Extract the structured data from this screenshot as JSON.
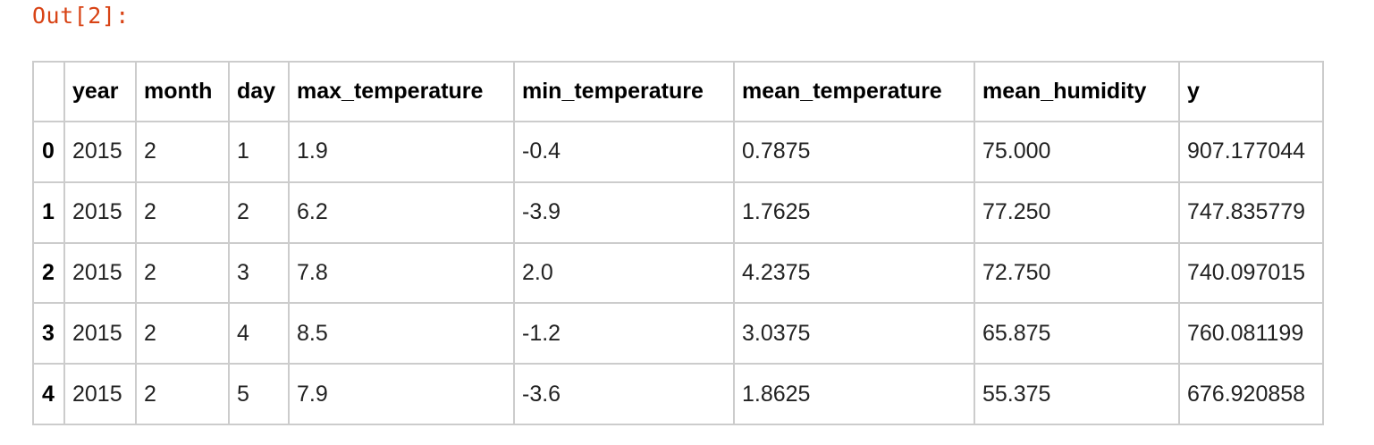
{
  "prompt": {
    "label": "Out[2]:"
  },
  "table": {
    "columns": [
      "",
      "year",
      "month",
      "day",
      "max_temperature",
      "min_temperature",
      "mean_temperature",
      "mean_humidity",
      "y"
    ],
    "rows": [
      {
        "index": "0",
        "cells": [
          "2015",
          "2",
          "1",
          "1.9",
          "-0.4",
          "0.7875",
          "75.000",
          "907.177044"
        ]
      },
      {
        "index": "1",
        "cells": [
          "2015",
          "2",
          "2",
          "6.2",
          "-3.9",
          "1.7625",
          "77.250",
          "747.835779"
        ]
      },
      {
        "index": "2",
        "cells": [
          "2015",
          "2",
          "3",
          "7.8",
          "2.0",
          "4.2375",
          "72.750",
          "740.097015"
        ]
      },
      {
        "index": "3",
        "cells": [
          "2015",
          "2",
          "4",
          "8.5",
          "-1.2",
          "3.0375",
          "65.875",
          "760.081199"
        ]
      },
      {
        "index": "4",
        "cells": [
          "2015",
          "2",
          "5",
          "7.9",
          "-3.6",
          "1.8625",
          "55.375",
          "676.920858"
        ]
      }
    ]
  }
}
